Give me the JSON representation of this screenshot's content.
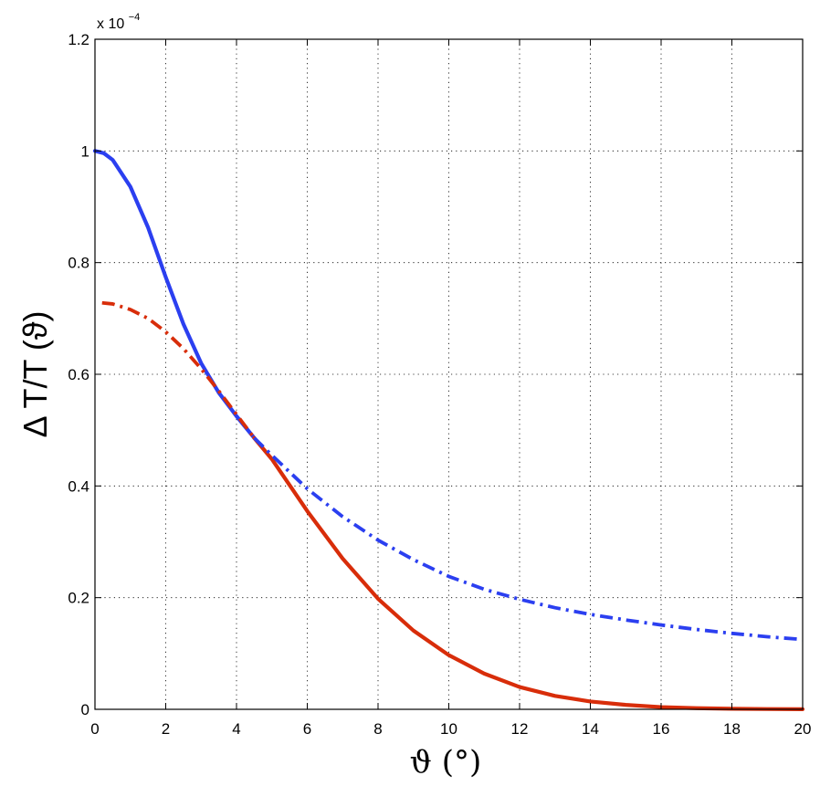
{
  "chart_data": {
    "type": "line",
    "xlabel": "ϑ (°)",
    "ylabel": "Δ T/T (ϑ)",
    "y_multiplier": {
      "base": "x 10",
      "exponent": "−4"
    },
    "xlim": [
      0,
      20
    ],
    "ylim": [
      0,
      1.2
    ],
    "y_scale_factor": 0.0001,
    "grid": true,
    "xticks": [
      0,
      2,
      4,
      6,
      8,
      10,
      12,
      14,
      16,
      18,
      20
    ],
    "yticks": [
      0,
      0.2,
      0.4,
      0.6,
      0.8,
      1,
      1.2
    ],
    "ytick_labels": [
      "0",
      "0.2",
      "0.4",
      "0.6",
      "0.8",
      "1",
      "1.2"
    ],
    "colors": {
      "blue": "#2b3ff0",
      "red": "#d82d0a"
    },
    "series": [
      {
        "color": "#2b3ff0",
        "style": "solid",
        "x": [
          0,
          0.25,
          0.5,
          1,
          1.5,
          2,
          2.5,
          3,
          3.5,
          4,
          4.5
        ],
        "y": [
          1.0,
          0.996,
          0.984,
          0.936,
          0.863,
          0.774,
          0.69,
          0.62,
          0.567,
          0.525,
          0.486
        ]
      },
      {
        "color": "#d82d0a",
        "style": "solid",
        "x": [
          4.5,
          5,
          6,
          7,
          8,
          9,
          10,
          11,
          12,
          13,
          14,
          15,
          16,
          17,
          18,
          19,
          20
        ],
        "y": [
          0.486,
          0.448,
          0.355,
          0.27,
          0.198,
          0.141,
          0.097,
          0.064,
          0.04,
          0.024,
          0.014,
          0.008,
          0.004,
          0.002,
          0.001,
          0.0005,
          0.0002
        ]
      },
      {
        "color": "#d82d0a",
        "style": "dashdot",
        "x": [
          0.2,
          0.5,
          1,
          1.5,
          2,
          2.5,
          3,
          3.5,
          4,
          4.5
        ],
        "y": [
          0.728,
          0.726,
          0.716,
          0.7,
          0.676,
          0.646,
          0.61,
          0.57,
          0.528,
          0.486
        ]
      },
      {
        "color": "#2b3ff0",
        "style": "dashdot",
        "x": [
          4.5,
          5,
          6,
          7,
          8,
          9,
          10,
          11,
          12,
          13,
          14,
          15,
          16,
          17,
          18,
          19,
          20
        ],
        "y": [
          0.486,
          0.455,
          0.395,
          0.345,
          0.303,
          0.268,
          0.238,
          0.215,
          0.197,
          0.182,
          0.17,
          0.16,
          0.151,
          0.143,
          0.136,
          0.13,
          0.125
        ]
      }
    ]
  }
}
